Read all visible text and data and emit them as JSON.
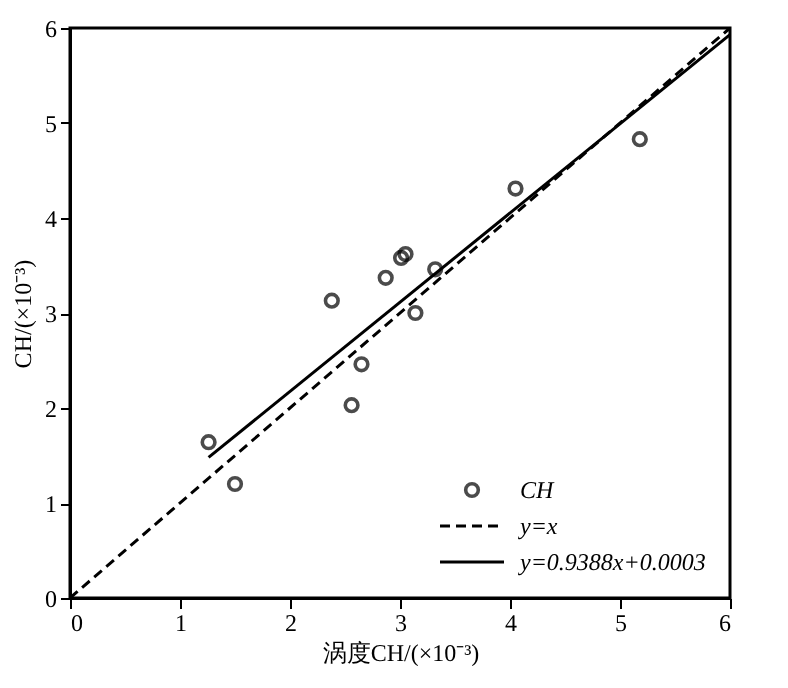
{
  "chart_data": {
    "type": "scatter",
    "xlabel": "涡度CH/(×10⁻³)",
    "ylabel": "CH/(×10⁻³)",
    "xlim": [
      0,
      6
    ],
    "ylim": [
      0,
      6
    ],
    "xticks": [
      0,
      1,
      2,
      3,
      4,
      5,
      6
    ],
    "yticks": [
      0,
      1,
      2,
      3,
      4,
      5,
      6
    ],
    "grid": false,
    "legend": "bottom right",
    "series": [
      {
        "name": "CH",
        "marker": "circle",
        "color": "#000000",
        "x": [
          1.26,
          1.5,
          2.38,
          2.56,
          2.65,
          2.87,
          3.01,
          3.05,
          3.14,
          3.32,
          4.05,
          5.18
        ],
        "values": [
          1.64,
          1.2,
          3.13,
          2.03,
          2.46,
          3.37,
          3.58,
          3.62,
          3.0,
          3.46,
          4.31,
          4.83
        ]
      },
      {
        "name": "y=x",
        "type": "line",
        "line_style": "dashed",
        "color": "#000000",
        "x": [
          0,
          6
        ],
        "values": [
          0,
          6
        ]
      },
      {
        "name": "y=0.9388x+0.0003",
        "type": "line",
        "line_style": "solid",
        "color": "#000000",
        "x": [
          1.26,
          6
        ],
        "values": [
          1.48,
          5.93
        ]
      }
    ]
  }
}
